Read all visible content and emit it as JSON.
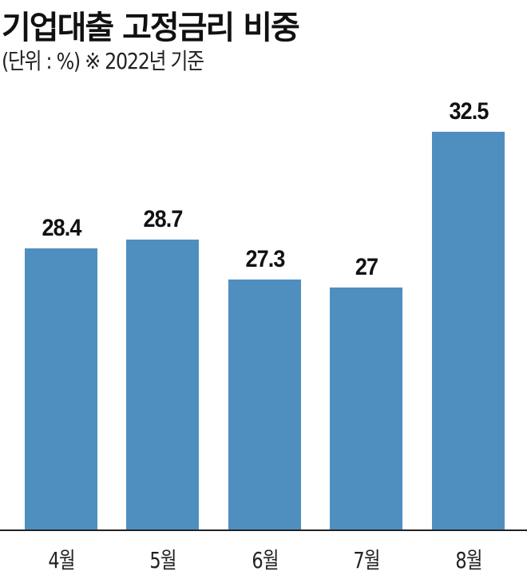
{
  "header": {
    "title": "기업대출 고정금리 비중",
    "subtitle": "(단위 : %)  ※ 2022년 기준"
  },
  "colors": {
    "bar": "#4f8fc0",
    "baseline": "#222222"
  },
  "chart_data": {
    "type": "bar",
    "title": "기업대출 고정금리 비중",
    "subtitle": "(단위 : %)  ※ 2022년 기준",
    "categories": [
      "4월",
      "5월",
      "6월",
      "7월",
      "8월"
    ],
    "values": [
      28.4,
      28.7,
      27.3,
      27,
      32.5
    ],
    "value_labels": [
      "28.4",
      "28.7",
      "27.3",
      "27",
      "32.5"
    ],
    "xlabel": "",
    "ylabel": "%",
    "grid": false,
    "legend": null,
    "y_axis_visible": false
  }
}
